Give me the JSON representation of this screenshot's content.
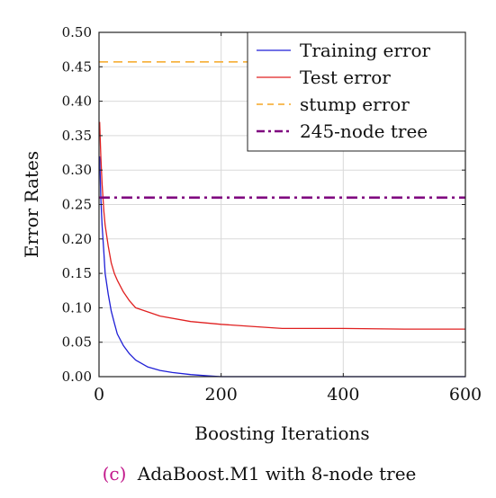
{
  "chart_data": {
    "type": "line",
    "ylabel": "Error Rates",
    "xlabel": "Boosting Iterations",
    "caption_prefix": "(c)",
    "caption_text": "AdaBoost.M1 with 8-node tree",
    "xlim": [
      0,
      600
    ],
    "ylim": [
      0,
      0.5
    ],
    "xticks": [
      0,
      200,
      400,
      600
    ],
    "xtick_labels": [
      "0",
      "200",
      "400",
      "600"
    ],
    "yticks": [
      0,
      0.05,
      0.1,
      0.15,
      0.2,
      0.25,
      0.3,
      0.35,
      0.4,
      0.45,
      0.5
    ],
    "ytick_labels": [
      "0.00",
      "0.05",
      "0.10",
      "0.15",
      "0.20",
      "0.25",
      "0.30",
      "0.35",
      "0.40",
      "0.45",
      "0.50"
    ],
    "grid": true,
    "legend_position": "top-right",
    "series": [
      {
        "name": "Training error",
        "color": "#1f1fd6",
        "style": "solid",
        "x": [
          1,
          3,
          5,
          8,
          10,
          15,
          20,
          25,
          30,
          40,
          50,
          60,
          80,
          100,
          120,
          150,
          180,
          200,
          300,
          400,
          500,
          600
        ],
        "y": [
          0.32,
          0.26,
          0.22,
          0.18,
          0.15,
          0.12,
          0.095,
          0.078,
          0.062,
          0.045,
          0.033,
          0.024,
          0.014,
          0.009,
          0.006,
          0.003,
          0.001,
          0.0,
          0.0,
          0.0,
          0.0,
          0.0
        ]
      },
      {
        "name": "Test error",
        "color": "#e02020",
        "style": "solid",
        "x": [
          1,
          3,
          5,
          8,
          10,
          15,
          20,
          25,
          30,
          40,
          50,
          60,
          80,
          100,
          150,
          200,
          250,
          300,
          400,
          500,
          600
        ],
        "y": [
          0.37,
          0.32,
          0.28,
          0.24,
          0.22,
          0.19,
          0.165,
          0.15,
          0.14,
          0.123,
          0.11,
          0.1,
          0.094,
          0.088,
          0.08,
          0.076,
          0.073,
          0.07,
          0.07,
          0.069,
          0.069
        ]
      },
      {
        "name": "stump error",
        "color": "#f5a623",
        "style": "dashed",
        "x": [
          0,
          600
        ],
        "y": [
          0.457,
          0.457
        ]
      },
      {
        "name": "245-node tree",
        "color": "#7f007f",
        "style": "dashdot",
        "x": [
          0,
          600
        ],
        "y": [
          0.26,
          0.26
        ]
      }
    ]
  }
}
